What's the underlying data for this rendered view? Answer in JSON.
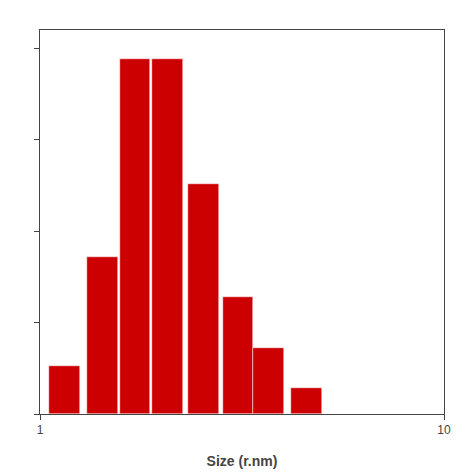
{
  "chart_data": {
    "type": "bar",
    "xlabel": "Size (r.nm)",
    "x": [
      1.148153621,
      1.428893937,
      1.71790818,
      2.06538012,
      2.54097258,
      3.0902953,
      3.67282297,
      4.57088191
    ],
    "values": [
      0.13,
      0.43,
      0.97,
      0.97,
      0.63,
      0.32,
      0.18,
      0.07
    ],
    "color": "#cc0000",
    "log": "x",
    "xlim": [
      1,
      10
    ],
    "xticks": [
      1,
      10
    ],
    "ylim": [
      0,
      1.05
    ],
    "yticks": [
      0,
      0.25,
      0.5,
      0.75,
      1
    ],
    "tick_labels": "x",
    "grid": false
  }
}
